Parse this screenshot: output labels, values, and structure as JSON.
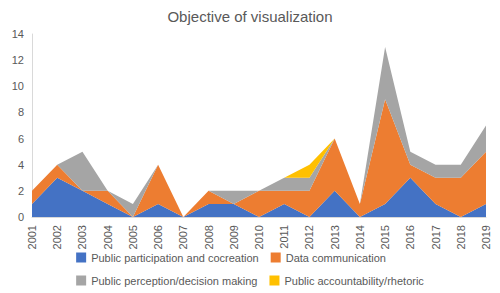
{
  "chart_data": {
    "type": "area",
    "title": "Objective of visualization",
    "stacked": true,
    "grid": false,
    "legend": "bottom",
    "categories": [
      "2001",
      "2002",
      "2003",
      "2004",
      "2005",
      "2006",
      "2007",
      "2008",
      "2009",
      "2010",
      "2011",
      "2012",
      "2013",
      "2014",
      "2015",
      "2016",
      "2017",
      "2018",
      "2019"
    ],
    "series": [
      {
        "name": "Public participation and cocreation",
        "color": "#4472c4",
        "values": [
          1,
          3,
          2,
          1,
          0,
          1,
          0,
          1,
          1,
          0,
          1,
          0,
          2,
          0,
          1,
          3,
          1,
          0,
          1
        ]
      },
      {
        "name": "Data communication",
        "color": "#ed7d31",
        "values": [
          1,
          1,
          0,
          1,
          0,
          3,
          0,
          1,
          0,
          2,
          1,
          2,
          4,
          1,
          8,
          1,
          2,
          3,
          4
        ]
      },
      {
        "name": "Public perception/decision making",
        "color": "#a5a5a5",
        "values": [
          0,
          0,
          3,
          0,
          1,
          0,
          0,
          0,
          1,
          0,
          1,
          1,
          0,
          0,
          4,
          1,
          1,
          1,
          2
        ]
      },
      {
        "name": "Public accountability/rhetoric",
        "color": "#ffc000",
        "values": [
          0,
          0,
          0,
          0,
          0,
          0,
          0,
          0,
          0,
          0,
          0,
          1,
          0,
          0,
          0,
          0,
          0,
          0,
          0
        ]
      }
    ],
    "ylim": [
      0,
      14
    ],
    "yticks": [
      0,
      2,
      4,
      6,
      8,
      10,
      12,
      14
    ]
  }
}
